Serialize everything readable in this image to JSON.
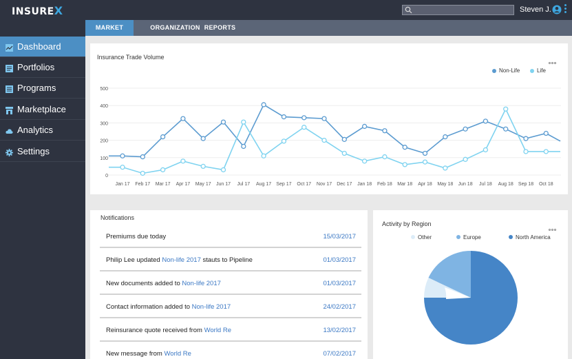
{
  "app": {
    "logo_text": "INSURE",
    "logo_x": "X",
    "user_name": "Steven J."
  },
  "search": {
    "placeholder": "",
    "value": ""
  },
  "sidebar": {
    "items": [
      {
        "label": "Dashboard",
        "icon": "chart-icon",
        "active": true
      },
      {
        "label": "Portfolios",
        "icon": "document-icon",
        "active": false
      },
      {
        "label": "Programs",
        "icon": "list-icon",
        "active": false
      },
      {
        "label": "Marketplace",
        "icon": "store-icon",
        "active": false
      },
      {
        "label": "Analytics",
        "icon": "cloud-icon",
        "active": false
      },
      {
        "label": "Settings",
        "icon": "gear-icon",
        "active": false
      }
    ]
  },
  "tabs": [
    {
      "label": "MARKET",
      "active": true
    },
    {
      "label": "ORGANIZATION",
      "active": false
    },
    {
      "label": "REPORTS",
      "active": false
    }
  ],
  "trade_chart": {
    "title": "Insurance Trade Volume",
    "legend": [
      "Non-Life",
      "Life"
    ]
  },
  "notifications": {
    "title": "Notifications",
    "rows": [
      {
        "pre": "Premiums due today",
        "link": "",
        "post": "",
        "date": "15/03/2017"
      },
      {
        "pre": "Philip Lee updated ",
        "link": "Non-life 2017",
        "post": " stauts to Pipeline",
        "date": "01/03/2017"
      },
      {
        "pre": "New documents added to ",
        "link": "Non-life 2017",
        "post": "",
        "date": "01/03/2017"
      },
      {
        "pre": "Contact information added to ",
        "link": "Non-life 2017",
        "post": "",
        "date": "24/02/2017"
      },
      {
        "pre": "Reinsurance quote received from ",
        "link": "World Re",
        "post": "",
        "date": "13/02/2017"
      },
      {
        "pre": "New message from ",
        "link": "World Re",
        "post": "",
        "date": "07/02/2017"
      }
    ]
  },
  "region": {
    "title": "Activity by Region",
    "legend": [
      "Other",
      "Europe",
      "North America"
    ]
  },
  "colors": {
    "non_life": "#5b9bd0",
    "life": "#7fd3f0",
    "other": "#dcecf8",
    "europe": "#7fb4e3",
    "north_america": "#4585c7"
  },
  "chart_data": [
    {
      "type": "line",
      "title": "Insurance Trade Volume",
      "categories": [
        "Jan 17",
        "Feb 17",
        "Mar 17",
        "Apr 17",
        "May 17",
        "Jun 17",
        "Jul 17",
        "Aug 17",
        "Sep 17",
        "Oct 17",
        "Nov 17",
        "Dec 17",
        "Jan 18",
        "Feb 18",
        "Mar 18",
        "Apr 18",
        "May 18",
        "Jun 18",
        "Jul 18",
        "Aug 18",
        "Sep 18",
        "Oct 18"
      ],
      "ylim": [
        0,
        500
      ],
      "yticks": [
        0,
        100,
        200,
        300,
        400,
        500
      ],
      "legend_position": "top-right",
      "series": [
        {
          "name": "Non-Life",
          "values": [
            110,
            105,
            220,
            325,
            210,
            305,
            165,
            405,
            335,
            330,
            325,
            205,
            280,
            255,
            160,
            125,
            220,
            265,
            310,
            265,
            210,
            240
          ]
        },
        {
          "name": "Life",
          "values": [
            45,
            10,
            30,
            80,
            50,
            30,
            305,
            110,
            195,
            275,
            200,
            125,
            80,
            105,
            60,
            75,
            40,
            90,
            145,
            380,
            135,
            135
          ]
        }
      ]
    },
    {
      "type": "pie",
      "title": "Activity by Region",
      "legend_position": "top",
      "slices": [
        {
          "name": "Other",
          "value": 7
        },
        {
          "name": "Europe",
          "value": 18
        },
        {
          "name": "North America",
          "value": 75
        }
      ]
    }
  ]
}
